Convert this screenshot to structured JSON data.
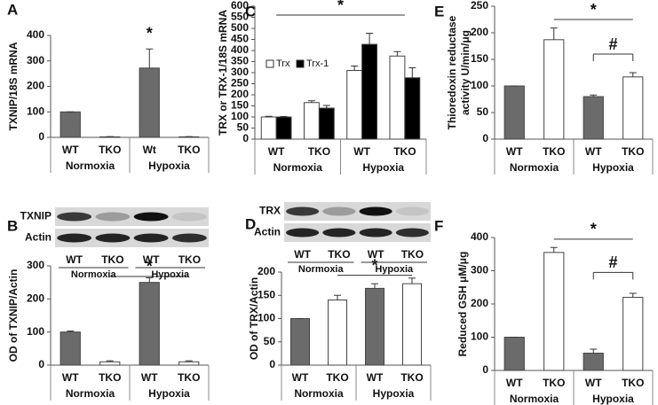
{
  "chart_data": [
    {
      "panel": "A",
      "type": "bar",
      "y_label": "TXNIP/18S mRNA",
      "categories": [
        "WT",
        "TKO",
        "Wt",
        "TKO"
      ],
      "groups": [
        "Normoxia",
        "Hypoxia"
      ],
      "values": [
        100,
        2,
        272,
        2
      ],
      "errors": [
        0,
        1,
        75,
        1
      ],
      "colors": [
        "#6b6b6b",
        "#ffffff",
        "#6b6b6b",
        "#ffffff"
      ],
      "ylim": [
        0,
        400
      ],
      "yticks": [
        0,
        100,
        200,
        300,
        400
      ],
      "annotations": [
        "*"
      ]
    },
    {
      "panel": "B",
      "type": "bar",
      "blot": {
        "rows": [
          "TXNIP",
          "Actin"
        ],
        "lanes": [
          "WT",
          "TKO",
          "WT",
          "TKO"
        ],
        "groups": [
          "Normoxia",
          "Hypoxia"
        ]
      },
      "y_label": "OD of TXNIP/Actin",
      "categories": [
        "WT",
        "TKO",
        "WT",
        "TKO"
      ],
      "groups": [
        "Normoxia",
        "Hypoxia"
      ],
      "values": [
        100,
        10,
        250,
        10
      ],
      "errors": [
        3,
        3,
        14,
        3
      ],
      "colors": [
        "#6b6b6b",
        "#ffffff",
        "#6b6b6b",
        "#ffffff"
      ],
      "ylim": [
        0,
        300
      ],
      "yticks": [
        0,
        100,
        200,
        300
      ],
      "annotations": [
        "*"
      ]
    },
    {
      "panel": "C",
      "type": "grouped_bar",
      "y_label": "TRX or TRX-1/18S mRNA",
      "categories": [
        "WT",
        "TKO",
        "WT",
        "TKO"
      ],
      "groups": [
        "Normoxia",
        "Hypoxia"
      ],
      "series": [
        {
          "name": "Trx",
          "color": "#ffffff",
          "values": [
            100,
            165,
            310,
            375
          ],
          "errors": [
            3,
            8,
            20,
            20
          ]
        },
        {
          "name": "Trx-1",
          "color": "#000000",
          "values": [
            100,
            140,
            428,
            277
          ],
          "errors": [
            2,
            12,
            50,
            45
          ]
        }
      ],
      "ylim": [
        0,
        600
      ],
      "yticks": [
        0,
        50,
        100,
        150,
        200,
        250,
        300,
        350,
        400,
        450,
        500,
        550,
        600
      ],
      "annotations": [
        "*"
      ]
    },
    {
      "panel": "D",
      "type": "bar",
      "blot": {
        "rows": [
          "TRX",
          "Actin"
        ],
        "lanes": [
          "WT",
          "TKO",
          "WT",
          "TKO"
        ],
        "groups": [
          "Normoxia",
          "Hypoxia"
        ]
      },
      "y_label": "OD of TRX/Actin",
      "categories": [
        "WT",
        "TKO",
        "WT",
        "TKO"
      ],
      "groups": [
        "Normoxia",
        "Hypoxia"
      ],
      "values": [
        100,
        140,
        165,
        175
      ],
      "errors": [
        0,
        10,
        10,
        12
      ],
      "colors": [
        "#6b6b6b",
        "#ffffff",
        "#6b6b6b",
        "#ffffff"
      ],
      "ylim": [
        0,
        200
      ],
      "yticks": [
        0,
        50,
        100,
        150,
        200
      ],
      "annotations": [
        "*"
      ]
    },
    {
      "panel": "E",
      "type": "bar",
      "y_label": [
        "Thioredoxin reductase",
        "activity U/min/μg"
      ],
      "categories": [
        "WT",
        "TKO",
        "WT",
        "TKO"
      ],
      "groups": [
        "Normoxia",
        "Hypoxia"
      ],
      "values": [
        100,
        187,
        80,
        117
      ],
      "errors": [
        0,
        22,
        3,
        8
      ],
      "colors": [
        "#6b6b6b",
        "#ffffff",
        "#6b6b6b",
        "#ffffff"
      ],
      "ylim": [
        0,
        250
      ],
      "yticks": [
        0,
        50,
        100,
        150,
        200,
        250
      ],
      "annotations": [
        "*",
        "#"
      ]
    },
    {
      "panel": "F",
      "type": "bar",
      "y_label": "Reduced GSH μM/μg",
      "categories": [
        "WT",
        "TKO",
        "WT",
        "TKO"
      ],
      "groups": [
        "Normoxia",
        "Hypoxia"
      ],
      "values": [
        100,
        355,
        52,
        220
      ],
      "errors": [
        0,
        15,
        12,
        12
      ],
      "colors": [
        "#6b6b6b",
        "#ffffff",
        "#6b6b6b",
        "#ffffff"
      ],
      "ylim": [
        0,
        400
      ],
      "yticks": [
        0,
        100,
        200,
        300,
        400
      ],
      "annotations": [
        "*",
        "#"
      ]
    }
  ]
}
